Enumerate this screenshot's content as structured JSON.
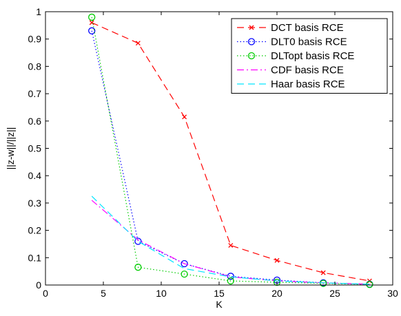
{
  "chart_data": {
    "type": "line",
    "xlabel": "K",
    "ylabel": "||z-w||/||z||",
    "xlim": [
      0,
      30
    ],
    "ylim": [
      0,
      1
    ],
    "xticks": [
      0,
      5,
      10,
      15,
      20,
      25,
      30
    ],
    "yticks": [
      0,
      0.1,
      0.2,
      0.3,
      0.4,
      0.5,
      0.6,
      0.7,
      0.8,
      0.9,
      1
    ],
    "xtick_labels": [
      "0",
      "5",
      "10",
      "15",
      "20",
      "25",
      "30"
    ],
    "ytick_labels": [
      "0",
      "0.1",
      "0.2",
      "0.3",
      "0.4",
      "0.5",
      "0.6",
      "0.7",
      "0.8",
      "0.9",
      "1"
    ],
    "grid": false,
    "legend_position": "top-right",
    "series": [
      {
        "name": "DCT basis RCE",
        "color": "#ff0000",
        "line_style": "dashed",
        "marker": "x",
        "x": [
          4,
          8,
          12,
          16,
          20,
          24,
          28
        ],
        "y": [
          0.96,
          0.885,
          0.615,
          0.145,
          0.09,
          0.045,
          0.015
        ]
      },
      {
        "name": "DLT0 basis RCE",
        "color": "#0000ff",
        "line_style": "dotted",
        "marker": "circle",
        "x": [
          4,
          8,
          12,
          16,
          20,
          24,
          28
        ],
        "y": [
          0.93,
          0.16,
          0.078,
          0.032,
          0.018,
          0.008,
          0.003
        ]
      },
      {
        "name": "DLTopt basis RCE",
        "color": "#00cc00",
        "line_style": "dotted",
        "marker": "circle",
        "x": [
          4,
          8,
          12,
          16,
          20,
          24,
          28
        ],
        "y": [
          0.98,
          0.065,
          0.04,
          0.015,
          0.01,
          0.006,
          0.002
        ]
      },
      {
        "name": "CDF basis RCE",
        "color": "#ff00ff",
        "line_style": "dashdot",
        "marker": "none",
        "x": [
          4,
          8,
          12,
          16,
          20,
          24,
          28
        ],
        "y": [
          0.31,
          0.165,
          0.078,
          0.03,
          0.015,
          0.008,
          0.003
        ]
      },
      {
        "name": "Haar basis RCE",
        "color": "#00e5ff",
        "line_style": "dashed",
        "marker": "none",
        "x": [
          4,
          8,
          12,
          16,
          20,
          24,
          28
        ],
        "y": [
          0.325,
          0.16,
          0.06,
          0.03,
          0.015,
          0.008,
          0.003
        ]
      }
    ]
  }
}
